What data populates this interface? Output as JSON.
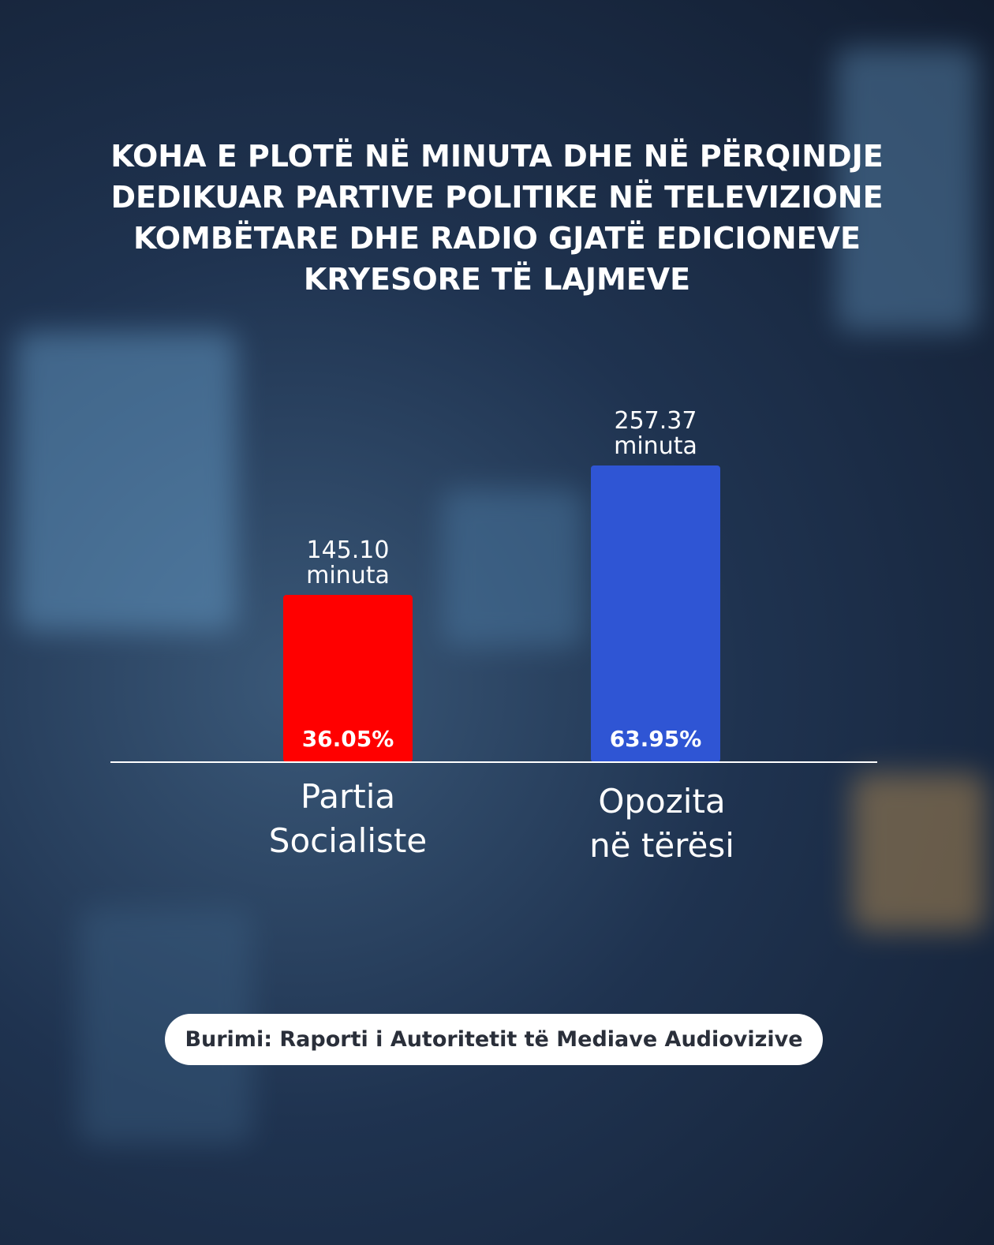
{
  "chart_data": {
    "type": "bar",
    "title": "KOHA E PLOTË NË MINUTA DHE NË PËRQINDJE\nDEDIKUAR PARTIVE POLITIKE NË TELEVIZIONE\nKOMBËTARE DHE RADIO GJATË EDICIONEVE\nKRYESORE TË LAJMEVE",
    "categories": [
      "Partia\nSocialiste",
      "Opozita\nnë tërësi"
    ],
    "values": [
      145.1,
      257.37
    ],
    "value_labels": [
      "145.10",
      "257.37"
    ],
    "unit": "minuta",
    "shares": [
      36.05,
      63.95
    ],
    "share_labels": [
      "36.05%",
      "63.95%"
    ],
    "colors": [
      "#ff0000",
      "#2f55d4"
    ],
    "source": "Burimi: Raporti i Autoritetit të Mediave Audiovizive"
  }
}
